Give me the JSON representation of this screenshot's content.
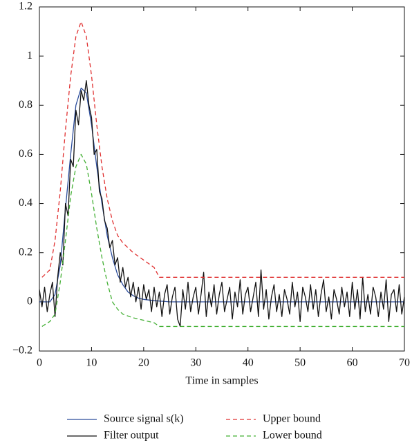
{
  "chart_data": {
    "type": "line",
    "xlabel": "Time in samples",
    "xlim": [
      0,
      70
    ],
    "xticks": [
      0,
      10,
      20,
      30,
      40,
      50,
      60,
      70
    ],
    "ylim": [
      -0.2,
      1.2
    ],
    "yticks": [
      {
        "value": -0.2,
        "label": "−0.2"
      },
      0,
      0.2,
      0.4,
      0.6,
      0.8,
      1,
      1.2
    ],
    "legend": "bottom",
    "series": [
      {
        "name": "Source signal s(k)",
        "color": "#2b4c9b",
        "linestyle": "solid",
        "x": [
          0,
          1,
          2,
          3,
          4,
          5,
          6,
          7,
          8,
          9,
          10,
          11,
          12,
          13,
          14,
          15,
          16,
          17,
          18,
          19,
          20,
          22,
          25,
          30,
          40,
          50,
          60,
          70
        ],
        "values": [
          0,
          0,
          0,
          0.03,
          0.15,
          0.38,
          0.6,
          0.8,
          0.87,
          0.85,
          0.72,
          0.55,
          0.4,
          0.27,
          0.18,
          0.11,
          0.07,
          0.04,
          0.025,
          0.015,
          0.01,
          0.005,
          0,
          0,
          0,
          0,
          0,
          0
        ]
      },
      {
        "name": "Filter output",
        "color": "#111111",
        "linestyle": "solid",
        "x": [
          0,
          0.5,
          1,
          1.5,
          2,
          2.5,
          3,
          3.5,
          4,
          4.5,
          5,
          5.5,
          6,
          6.5,
          7,
          7.5,
          8,
          8.5,
          9,
          9.5,
          10,
          10.5,
          11,
          11.5,
          12,
          12.5,
          13,
          13.5,
          14,
          14.5,
          15,
          15.5,
          16,
          16.5,
          17,
          17.5,
          18,
          18.5,
          19,
          19.5,
          20,
          20.5,
          21,
          21.5,
          22,
          22.5,
          23,
          23.5,
          24,
          24.5,
          25,
          25.5,
          26,
          26.5,
          27,
          27.5,
          28,
          28.5,
          29,
          29.5,
          30,
          30.5,
          31,
          31.5,
          32,
          32.5,
          33,
          33.5,
          34,
          34.5,
          35,
          35.5,
          36,
          36.5,
          37,
          37.5,
          38,
          38.5,
          39,
          39.5,
          40,
          40.5,
          41,
          41.5,
          42,
          42.5,
          43,
          43.5,
          44,
          44.5,
          45,
          45.5,
          46,
          46.5,
          47,
          47.5,
          48,
          48.5,
          49,
          49.5,
          50,
          50.5,
          51,
          51.5,
          52,
          52.5,
          53,
          53.5,
          54,
          54.5,
          55,
          55.5,
          56,
          56.5,
          57,
          57.5,
          58,
          58.5,
          59,
          59.5,
          60,
          60.5,
          61,
          61.5,
          62,
          62.5,
          63,
          63.5,
          64,
          64.5,
          65,
          65.5,
          66,
          66.5,
          67,
          67.5,
          68,
          68.5,
          69,
          69.5,
          70
        ],
        "values": [
          0.05,
          -0.02,
          0.06,
          -0.04,
          0.03,
          0.08,
          -0.06,
          0.1,
          0.2,
          0.15,
          0.4,
          0.35,
          0.58,
          0.55,
          0.78,
          0.72,
          0.86,
          0.82,
          0.9,
          0.8,
          0.75,
          0.6,
          0.62,
          0.45,
          0.42,
          0.33,
          0.3,
          0.22,
          0.25,
          0.15,
          0.18,
          0.08,
          0.14,
          0.06,
          0.1,
          0.02,
          0.08,
          0.0,
          0.06,
          -0.03,
          0.07,
          0.01,
          0.05,
          -0.04,
          0.06,
          -0.02,
          0.04,
          -0.06,
          0.03,
          0.07,
          -0.05,
          0.02,
          0.06,
          -0.07,
          -0.1,
          0.05,
          -0.03,
          0.08,
          -0.04,
          0.02,
          0.06,
          -0.05,
          0.03,
          0.12,
          -0.06,
          0.04,
          -0.02,
          0.07,
          -0.05,
          0.03,
          0.08,
          -0.04,
          0.01,
          0.06,
          -0.07,
          0.04,
          -0.02,
          0.09,
          -0.05,
          0.03,
          0.06,
          -0.04,
          0.02,
          0.08,
          -0.06,
          0.13,
          -0.03,
          0.05,
          -0.07,
          0.02,
          0.07,
          -0.04,
          0.03,
          -0.06,
          0.05,
          0.01,
          -0.05,
          0.08,
          -0.02,
          0.04,
          -0.08,
          0.06,
          0.02,
          -0.04,
          0.07,
          -0.03,
          0.05,
          -0.06,
          0.03,
          0.09,
          -0.04,
          0.02,
          -0.07,
          0.05,
          0.01,
          -0.05,
          0.06,
          -0.02,
          0.04,
          -0.06,
          0.08,
          -0.03,
          0.05,
          -0.07,
          0.1,
          -0.04,
          0.03,
          -0.05,
          0.06,
          0.02,
          -0.06,
          0.04,
          -0.03,
          0.09,
          -0.08,
          0.03,
          0.05,
          -0.04,
          0.07,
          -0.05,
          0.02
        ]
      },
      {
        "name": "Upper bound",
        "color": "#e03030",
        "linestyle": "dashed",
        "x": [
          0.5,
          2,
          3,
          4,
          5,
          6,
          7,
          8,
          9,
          10,
          11,
          12,
          13,
          14,
          15,
          16,
          18,
          20,
          22,
          23,
          70
        ],
        "values": [
          0.1,
          0.13,
          0.25,
          0.45,
          0.7,
          0.92,
          1.08,
          1.14,
          1.08,
          0.92,
          0.72,
          0.55,
          0.42,
          0.33,
          0.27,
          0.24,
          0.2,
          0.17,
          0.14,
          0.1,
          0.1
        ]
      },
      {
        "name": "Lower bound",
        "color": "#44b035",
        "linestyle": "dashed",
        "x": [
          0.5,
          2,
          3,
          4,
          5,
          6,
          7,
          8,
          9,
          10,
          11,
          12,
          13,
          14,
          15,
          16,
          18,
          20,
          22,
          23,
          70
        ],
        "values": [
          -0.1,
          -0.08,
          -0.05,
          0.08,
          0.25,
          0.43,
          0.55,
          0.6,
          0.56,
          0.44,
          0.3,
          0.18,
          0.08,
          0,
          -0.03,
          -0.05,
          -0.065,
          -0.075,
          -0.085,
          -0.1,
          -0.1
        ]
      }
    ]
  }
}
